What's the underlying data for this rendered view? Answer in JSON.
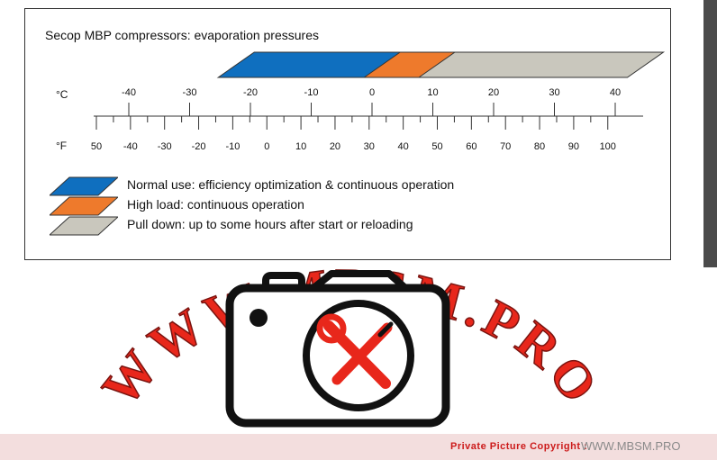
{
  "title": "Secop MBP compressors:  evaporation pressures",
  "scale": {
    "celsius_unit": "°C",
    "fahrenheit_unit": "°F",
    "celsius_ticks": [
      -40,
      -30,
      -20,
      -10,
      0,
      10,
      20,
      30,
      40
    ],
    "fahrenheit_ticks": [
      50,
      -40,
      -30,
      -20,
      -10,
      0,
      10,
      20,
      30,
      40,
      50,
      60,
      70,
      80,
      90,
      100
    ]
  },
  "bands": [
    {
      "id": "normal",
      "color": "#0f6fbf",
      "celsius_from": -25,
      "celsius_to": 5
    },
    {
      "id": "high",
      "color": "#ee7a2c",
      "celsius_from": -1,
      "celsius_to": 10
    },
    {
      "id": "pulldown",
      "color": "#c9c7bd",
      "celsius_from": 8,
      "celsius_to": 42
    }
  ],
  "legend": [
    {
      "label": "Normal use: efficiency optimization & continuous operation",
      "color": "#0f6fbf"
    },
    {
      "label": "High load: continuous operation",
      "color": "#ee7a2c"
    },
    {
      "label": "Pull down: up to some hours after start or reloading",
      "color": "#c9c7bd"
    }
  ],
  "watermark": {
    "text": "WWW.MBSM.PRO",
    "color": "#e8271b",
    "icon": "camera-with-tools-icon"
  },
  "footer": {
    "copyright_label": "Private Picture Copyright :",
    "site": "WWW.MBSM.PRO"
  }
}
